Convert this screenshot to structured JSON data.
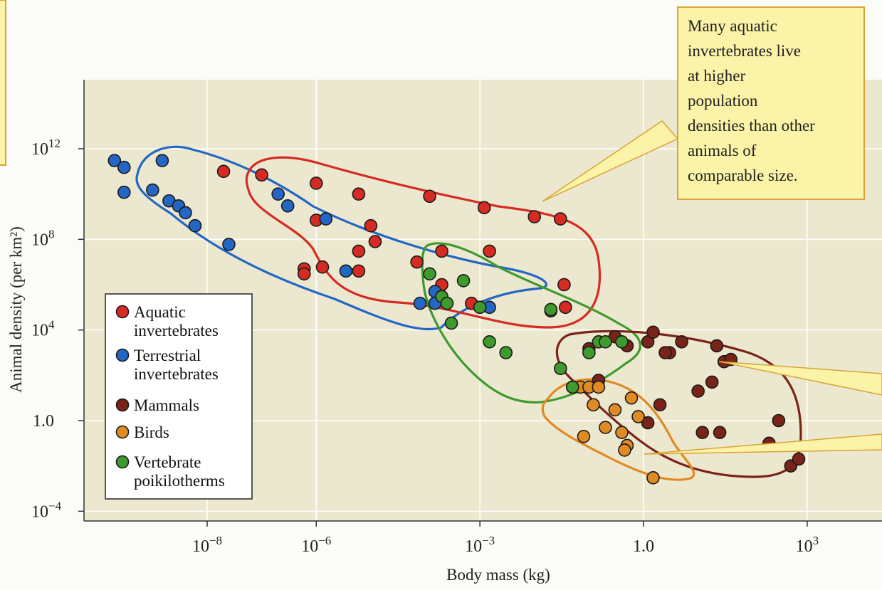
{
  "chart_data": {
    "type": "scatter",
    "xlabel": "Body mass (kg)",
    "ylabel": "Animal density (per km²)",
    "x_scale": "log",
    "y_scale": "log",
    "xlim": [
      1e-11,
      100000.0
    ],
    "ylim": [
      1e-05,
      100000000000000.0
    ],
    "grid": true,
    "x_ticks": [
      {
        "value": 1e-08,
        "base": "10",
        "exp": "−8"
      },
      {
        "value": 1e-06,
        "base": "10",
        "exp": "−6"
      },
      {
        "value": 0.001,
        "base": "10",
        "exp": "−3"
      },
      {
        "value": 1,
        "base": "1.0",
        "exp": ""
      },
      {
        "value": 1000,
        "base": "10",
        "exp": "3"
      }
    ],
    "y_ticks": [
      {
        "value": 1000000000000.0,
        "base": "10",
        "exp": "12"
      },
      {
        "value": 100000000.0,
        "base": "10",
        "exp": "8"
      },
      {
        "value": 10000.0,
        "base": "10",
        "exp": "4"
      },
      {
        "value": 1,
        "base": "1.0",
        "exp": ""
      },
      {
        "value": 0.0001,
        "base": "10",
        "exp": "−4"
      }
    ],
    "legend_position": "bottom-left",
    "series": [
      {
        "name": "Aquatic invertebrates",
        "color": "#d62b22",
        "x": [
          2e-08,
          1e-07,
          1e-06,
          6e-06,
          0.00012,
          0.0012,
          0.01,
          0.03,
          1e-06,
          1e-05,
          1.2e-05,
          6e-06,
          0.0002,
          0.0015,
          7e-05,
          1.3e-06,
          6e-07,
          6e-06,
          6e-07,
          0.0002,
          0.0007,
          0.035,
          0.037,
          0.02
        ],
        "y": [
          100000000000.0,
          70000000000.0,
          30000000000.0,
          10000000000.0,
          8000000000.0,
          2500000000.0,
          1000000000.0,
          800000000.0,
          700000000.0,
          400000000.0,
          80000000.0,
          30000000.0,
          30000000.0,
          30000000.0,
          10000000.0,
          6000000.0,
          5000000.0,
          4000000.0,
          3000000.0,
          1000000.0,
          150000.0,
          1000000.0,
          100000.0,
          70000.0
        ]
      },
      {
        "name": "Terrestrial invertebrates",
        "color": "#2466c4",
        "x": [
          2e-10,
          3e-10,
          3e-10,
          1.5e-09,
          1e-09,
          2e-09,
          3e-09,
          4e-09,
          6e-09,
          2.5e-08,
          2e-07,
          3e-07,
          1.5e-06,
          3.5e-06,
          0.00015,
          8e-05,
          0.00015,
          0.0015
        ],
        "y": [
          300000000000.0,
          150000000000.0,
          12000000000.0,
          300000000000.0,
          15000000000.0,
          5000000000.0,
          3000000000.0,
          1500000000.0,
          400000000.0,
          60000000.0,
          10000000000.0,
          3000000000.0,
          800000000.0,
          4000000.0,
          500000.0,
          150000.0,
          150000.0,
          100000.0
        ]
      },
      {
        "name": "Mammals",
        "color": "#7a2318",
        "x": [
          0.3,
          0.5,
          1.2,
          1.5,
          3,
          5,
          10,
          18,
          22,
          30,
          40,
          200,
          300,
          500,
          700,
          1.2,
          0.1,
          0.15,
          2.5,
          2,
          25,
          12
        ],
        "y": [
          5000.0,
          2000.0,
          3000.0,
          8000.0,
          1000.0,
          3000.0,
          20,
          50,
          2000,
          400,
          500,
          0.1,
          1,
          0.01,
          0.02,
          0.8,
          1500,
          60,
          1000.0,
          5,
          0.3,
          0.3
        ],
        "x_note": "approximate"
      },
      {
        "name": "Birds",
        "color": "#e08a23",
        "x": [
          0.05,
          0.07,
          0.1,
          0.12,
          0.15,
          0.2,
          0.3,
          0.4,
          0.5,
          0.6,
          0.08,
          1.5,
          0.8,
          0.45
        ],
        "y": [
          30,
          30,
          30,
          5,
          30,
          0.5,
          3,
          0.3,
          0.08,
          10,
          0.2,
          0.003,
          1.5,
          0.05
        ]
      },
      {
        "name": "Vertebrate poikilotherms",
        "color": "#3f9a2d",
        "x": [
          0.00012,
          0.0002,
          0.00025,
          0.0003,
          0.0005,
          0.001,
          0.0015,
          0.02,
          0.03,
          0.05,
          0.1,
          0.15,
          0.2,
          0.4,
          0.001,
          0.003
        ],
        "y": [
          3000000.0,
          300000.0,
          150000.0,
          20000.0,
          1500000.0,
          100000.0,
          3000.0,
          80000.0,
          200,
          30,
          1000.0,
          3000.0,
          3000.0,
          3000.0,
          100000.0,
          1000.0
        ]
      }
    ],
    "annotations": [
      {
        "text_lines": [
          "Many aquatic",
          "invertebrates live",
          "at higher",
          "population",
          "densities than other",
          "animals of",
          "comparable size."
        ]
      }
    ]
  },
  "legend": {
    "items": [
      {
        "lines": [
          "Aquatic",
          "invertebrates"
        ],
        "color": "#d62b22"
      },
      {
        "lines": [
          "Terrestrial",
          "invertebrates"
        ],
        "color": "#2466c4"
      },
      {
        "lines": [
          "Mammals"
        ],
        "color": "#7a2318"
      },
      {
        "lines": [
          "Birds"
        ],
        "color": "#e08a23"
      },
      {
        "lines": [
          "Vertebrate",
          "poikilotherms"
        ],
        "color": "#3f9a2d"
      }
    ]
  },
  "colors": {
    "plot_background": "#ece8cf",
    "callout_fill": "#fbf3a8",
    "callout_border": "#d9a23a",
    "grid": "#ffffff"
  }
}
